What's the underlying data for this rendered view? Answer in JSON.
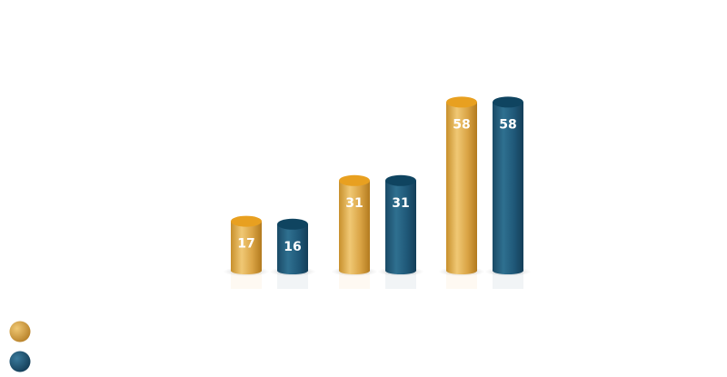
{
  "chart_data": {
    "type": "bar",
    "style": "3d-cylinder",
    "categories": [
      "",
      "",
      ""
    ],
    "series": [
      {
        "values": [
          17,
          31,
          58
        ],
        "color": "#d4a040"
      },
      {
        "values": [
          16,
          31,
          58
        ],
        "color": "#1e5a7a"
      }
    ],
    "data_labels": true,
    "legend": {
      "placement": "bottom-left",
      "entries": [
        "",
        ""
      ]
    },
    "grid": false
  }
}
